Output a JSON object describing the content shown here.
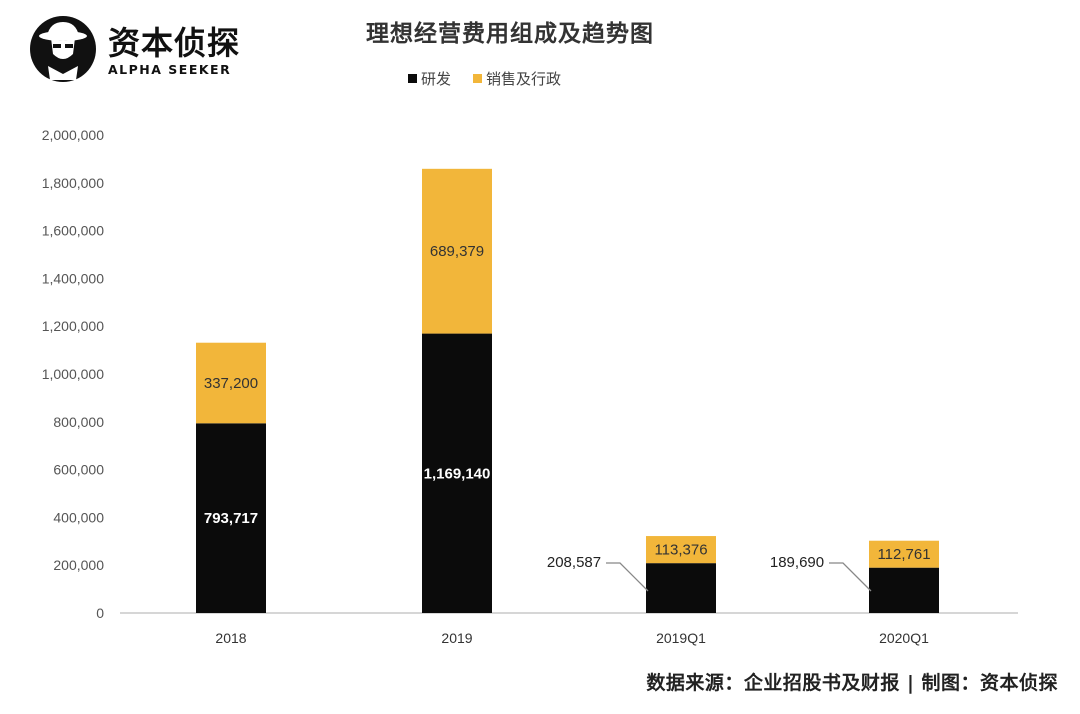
{
  "brand": {
    "name_cn": "资本侦探",
    "name_en": "ALPHA SEEKER"
  },
  "colors": {
    "rd": "#0b0b0b",
    "sga": "#f2b63a",
    "axis": "#c8c8c8",
    "tick_text": "#555555"
  },
  "source_text": "数据来源：企业招股书及财报 | 制图：资本侦探",
  "chart_data": {
    "type": "bar",
    "stacked": true,
    "title": "理想经营费用组成及趋势图",
    "categories": [
      "2018",
      "2019",
      "2019Q1",
      "2020Q1"
    ],
    "series": [
      {
        "name": "研发",
        "color": "#0b0b0b",
        "values": [
          793717,
          1169140,
          208587,
          189690
        ]
      },
      {
        "name": "销售及行政",
        "color": "#f2b63a",
        "values": [
          337200,
          689379,
          113376,
          112761
        ]
      }
    ],
    "data_labels": {
      "研发": [
        "793,717",
        "1,169,140",
        "208,587",
        "189,690"
      ],
      "销售及行政": [
        "337,200",
        "689,379",
        "113,376",
        "112,761"
      ]
    },
    "yticks": [
      "0",
      "200,000",
      "400,000",
      "600,000",
      "800,000",
      "1,000,000",
      "1,200,000",
      "1,400,000",
      "1,600,000",
      "1,800,000",
      "2,000,000"
    ],
    "ylim": [
      0,
      2000000
    ],
    "legend_position": "top",
    "grid": false
  }
}
